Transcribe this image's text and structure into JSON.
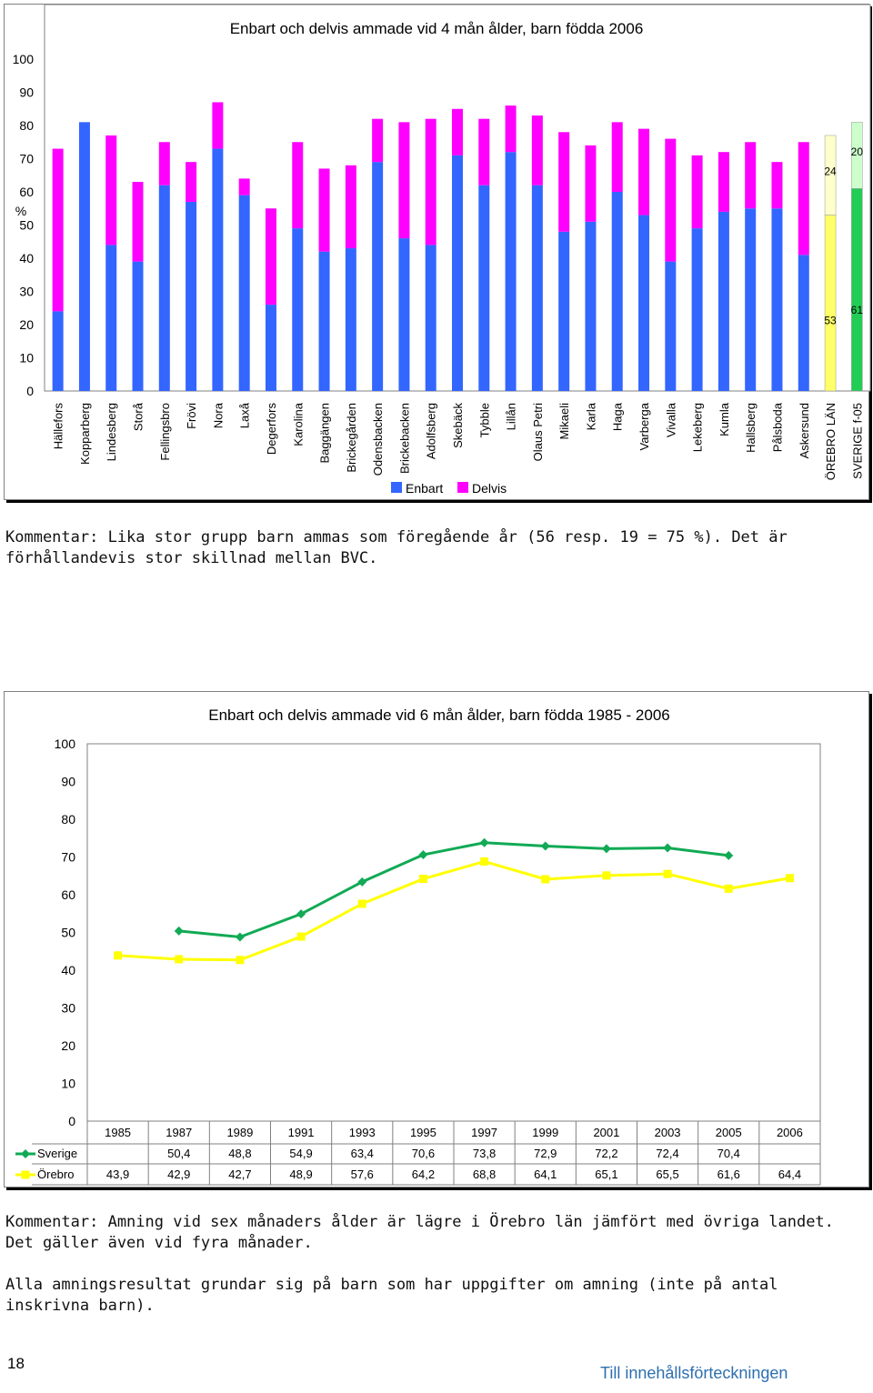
{
  "chart_data": [
    {
      "type": "bar",
      "stacked": true,
      "title": "Enbart och delvis ammade vid 4 mån ålder, barn födda 2006",
      "ylabel": "%",
      "ylim": [
        0,
        100
      ],
      "yticks": [
        0,
        10,
        20,
        30,
        40,
        50,
        60,
        70,
        80,
        90,
        100
      ],
      "legend_position": "bottom",
      "categories": [
        "Hällefors",
        "Kopparberg",
        "Lindesberg",
        "Storå",
        "Fellingsbro",
        "Frövi",
        "Nora",
        "Laxå",
        "Degerfors",
        "Karolina",
        "Baggängen",
        "Brickegården",
        "Odensbacken",
        "Brickebacken",
        "Adolfsberg",
        "Skebäck",
        "Tybble",
        "Lillån",
        "Olaus Petri",
        "Mikaeli",
        "Karla",
        "Haga",
        "Varberga",
        "Vivalla",
        "Lekeberg",
        "Kumla",
        "Hallsberg",
        "Pålsboda",
        "Askersund",
        "ÖREBRO LÄN",
        "SVERIGE f-05"
      ],
      "series": [
        {
          "name": "Enbart",
          "color": "#3366ff",
          "values": [
            24,
            81,
            44,
            39,
            62,
            57,
            73,
            59,
            26,
            49,
            42,
            43,
            69,
            46,
            44,
            71,
            62,
            72,
            62,
            48,
            51,
            60,
            53,
            39,
            49,
            54,
            55,
            55,
            41,
            53,
            61
          ]
        },
        {
          "name": "Delvis",
          "color": "#ff00ff",
          "values": [
            49,
            0,
            33,
            24,
            13,
            12,
            14,
            5,
            29,
            26,
            25,
            25,
            13,
            35,
            38,
            14,
            20,
            14,
            21,
            30,
            23,
            21,
            26,
            37,
            22,
            18,
            20,
            14,
            34,
            24,
            20
          ]
        }
      ],
      "highlight_colors": {
        "ÖREBRO LÄN": {
          "Enbart": "#ffff66",
          "Delvis": "#ffffcc"
        },
        "SVERIGE f-05": {
          "Enbart": "#22cc55",
          "Delvis": "#ccffcc"
        }
      },
      "data_labels": [
        {
          "category": "ÖREBRO LÄN",
          "series": "Enbart",
          "text": "53"
        },
        {
          "category": "ÖREBRO LÄN",
          "series": "Delvis",
          "text": "24"
        },
        {
          "category": "SVERIGE f-05",
          "series": "Enbart",
          "text": "61"
        },
        {
          "category": "SVERIGE f-05",
          "series": "Delvis",
          "text": "20"
        }
      ]
    },
    {
      "type": "line",
      "title": "Enbart och delvis ammade vid 6 mån ålder, barn födda 1985 - 2006",
      "ylim": [
        0,
        100
      ],
      "yticks": [
        0,
        10,
        20,
        30,
        40,
        50,
        60,
        70,
        80,
        90,
        100
      ],
      "categories": [
        "1985",
        "1987",
        "1989",
        "1991",
        "1993",
        "1995",
        "1997",
        "1999",
        "2001",
        "2003",
        "2005",
        "2006"
      ],
      "data_table": true,
      "series": [
        {
          "name": "Sverige",
          "color": "#11aa55",
          "marker": "diamond",
          "values": [
            null,
            50.4,
            48.8,
            54.9,
            63.4,
            70.6,
            73.8,
            72.9,
            72.2,
            72.4,
            70.4,
            null
          ],
          "labels": [
            "",
            "50,4",
            "48,8",
            "54,9",
            "63,4",
            "70,6",
            "73,8",
            "72,9",
            "72,2",
            "72,4",
            "70,4",
            ""
          ]
        },
        {
          "name": "Örebro",
          "color": "#ffff00",
          "marker": "square",
          "values": [
            43.9,
            42.9,
            42.7,
            48.9,
            57.6,
            64.2,
            68.8,
            64.1,
            65.1,
            65.5,
            61.6,
            64.4
          ],
          "labels": [
            "43,9",
            "42,9",
            "42,7",
            "48,9",
            "57,6",
            "64,2",
            "68,8",
            "64,1",
            "65,1",
            "65,5",
            "61,6",
            "64,4"
          ]
        }
      ]
    }
  ],
  "comments": {
    "comment1": "Kommentar: Lika stor grupp barn ammas som föregående år (56 resp. 19 = 75 %). Det är förhållandevis stor skillnad mellan BVC.",
    "comment2": "Kommentar: Amning vid sex månaders ålder är lägre i Örebro län jämfört med övriga landet. Det gäller även vid fyra månader.",
    "comment3": "Alla amningsresultat grundar sig på barn som har uppgifter om amning (inte på antal inskrivna barn)."
  },
  "footer": {
    "page_number": "18",
    "toc_link": "Till innehållsförteckningen"
  }
}
